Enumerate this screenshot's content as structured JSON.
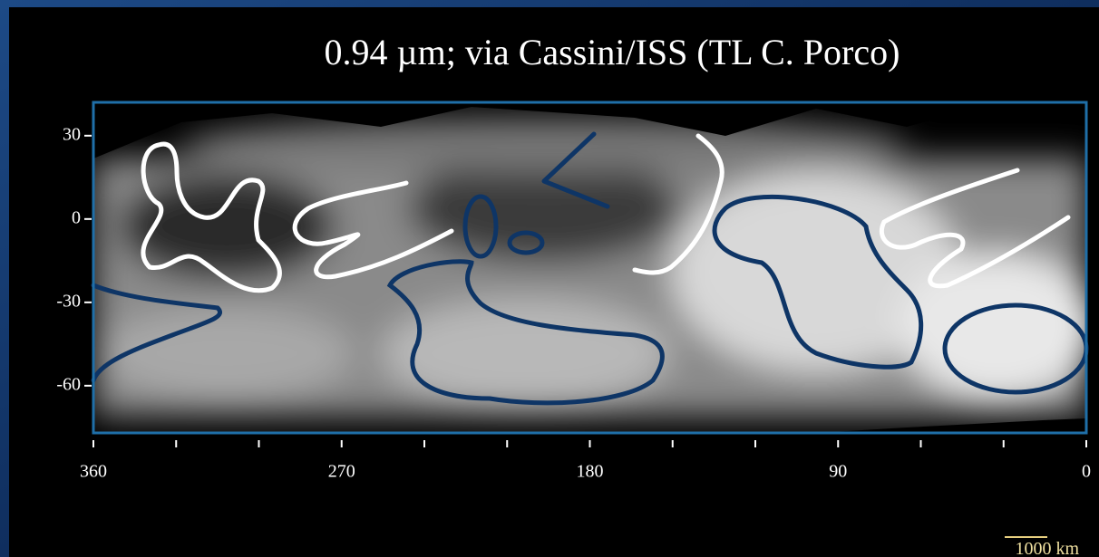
{
  "title": "0.94 µm; via Cassini/ISS (TL C. Porco)",
  "map": {
    "xlim": [
      360,
      0
    ],
    "ylim": [
      -77,
      42
    ],
    "xticks": [
      360,
      270,
      180,
      90,
      0
    ],
    "xminor": [
      330,
      300,
      240,
      210,
      150,
      120,
      60,
      30
    ],
    "yticks": [
      30,
      0,
      -30,
      -60
    ]
  },
  "scale_bar": "1000 km"
}
